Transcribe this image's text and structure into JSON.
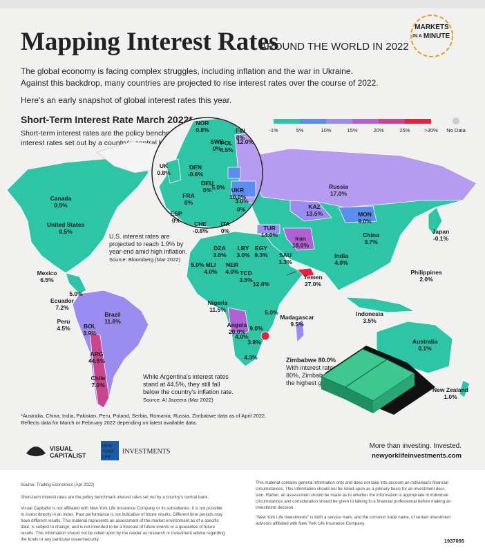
{
  "header": {
    "title": "Mapping Interest Rates",
    "subtitle": "AROUND THE WORLD IN 2022",
    "badge": [
      "MARKETS",
      "IN A",
      "MINUTE"
    ]
  },
  "intro": [
    "The global economy is facing complex struggles, including inflation and the war in Ukraine.",
    "Against this backdrop, many countries are projected to rise interest rates over the course of 2022.",
    "Here's an early snapshot of global interest rates this year."
  ],
  "map": {
    "title": "Short-Term Interest Rate March 2022*",
    "description": [
      "Short-term interest rates are the policy benchmark",
      "interest rates set out by a country's central bank."
    ],
    "legend": {
      "labels": [
        "-1%",
        "5%",
        "10%",
        "15%",
        "20%",
        "25%",
        ">30%"
      ],
      "no_data": "No Data"
    },
    "labels": [
      {
        "name": "Canada",
        "rate": "0.5%"
      },
      {
        "name": "United States",
        "rate": "0.5%"
      },
      {
        "name": "Mexico",
        "rate": "6.5%"
      },
      {
        "name": "Ecuador",
        "rate": "7.2%"
      },
      {
        "name": "Peru",
        "rate": "4.5%"
      },
      {
        "name": "Brazil",
        "rate": "11.8%"
      },
      {
        "name": "BOL",
        "rate": "3.9%"
      },
      {
        "name": "ARG",
        "rate": "44.5%"
      },
      {
        "name": "Chile",
        "rate": "7.0%"
      },
      {
        "rate": "5.0%"
      },
      {
        "name": "Russia",
        "rate": "17.0%"
      },
      {
        "name": "KAZ",
        "rate": "13.5%"
      },
      {
        "name": "MON",
        "rate": "9.0%"
      },
      {
        "name": "China",
        "rate": "3.7%"
      },
      {
        "name": "Japan",
        "rate": "-0.1%"
      },
      {
        "name": "India",
        "rate": "4.0%"
      },
      {
        "name": "Iran",
        "rate": "18.0%"
      },
      {
        "name": "TUR",
        "rate": "14.0%"
      },
      {
        "name": "SAU",
        "rate": "1.3%"
      },
      {
        "name": "Yemen",
        "rate": "27.0%"
      },
      {
        "name": "Philippines",
        "rate": "2.0%"
      },
      {
        "name": "Indonesia",
        "rate": "3.5%"
      },
      {
        "name": "Australia",
        "rate": "0.1%"
      },
      {
        "name": "New Zealand",
        "rate": "1.0%"
      },
      {
        "name": "DZA",
        "rate": "3.0%"
      },
      {
        "name": "LBY",
        "rate": "3.0%"
      },
      {
        "name": "EGY",
        "rate": "9.3%"
      },
      {
        "rate": "5.0%"
      },
      {
        "name": "MLI",
        "rate": "4.0%"
      },
      {
        "name": "NER",
        "rate": "4.0%"
      },
      {
        "name": "TCD",
        "rate": "3.5%"
      },
      {
        "rate": "12.0%"
      },
      {
        "name": "Nigeria",
        "rate": "11.5%"
      },
      {
        "name": "Angola",
        "rate": "20.0%"
      },
      {
        "name": "Madagascar",
        "rate": "9.5%"
      },
      {
        "rate": "5.0%"
      },
      {
        "rate": "9.0%"
      },
      {
        "rate": "4.0%"
      },
      {
        "rate": "3.8%"
      },
      {
        "rate": "4.3%"
      },
      {
        "name": "NOR",
        "rate": "0.8%"
      },
      {
        "name": "FIN",
        "rate": "0%"
      },
      {
        "name": "SWE",
        "rate": "0%"
      },
      {
        "name": "UK",
        "rate": "0.8%"
      },
      {
        "name": "DEN",
        "rate": "-0.6%"
      },
      {
        "name": "POL",
        "rate": "4.5%"
      },
      {
        "rate": "12.0%"
      },
      {
        "name": "DEU",
        "rate": "0%"
      },
      {
        "rate": "5.0%"
      },
      {
        "name": "UKR",
        "rate": "10.0%"
      },
      {
        "name": "FRA",
        "rate": "0%"
      },
      {
        "rate": "3.0%"
      },
      {
        "name": "ESP",
        "rate": "0%"
      },
      {
        "rate": "0%"
      },
      {
        "name": "CHE",
        "rate": "-0.8%"
      },
      {
        "name": "ITA",
        "rate": "0%"
      }
    ],
    "annotations": [
      {
        "lines": [
          "U.S. interest rates are",
          "projected to reach 1.9% by",
          "year-end amid high inflation."
        ],
        "source": "Source: Bloomberg (Mar 2022)"
      },
      {
        "lines": [
          "While Argentina's interest rates",
          "stand at 44.5%, they still fall",
          "below the country's inflation rate."
        ],
        "source": "Source: Al Jazeera (Mar 2022)"
      },
      {
        "heading": "Zimbabwe 80.0%",
        "lines": [
          "With interest rates at",
          "80%, Zimbabwe's are",
          "the highest globally."
        ]
      }
    ]
  },
  "footnote": [
    "*Australia, China, India, Pakistan, Peru, Poland, Serbia, Romania, Russia, Zimbabwe data as of April 2022.",
    "Reflects data for March or February 2022 depending on latest available data."
  ],
  "branding": {
    "vc": [
      "VISUAL",
      "CAPITALIST"
    ],
    "nyl": [
      "NEW",
      "YORK",
      "LIFE"
    ],
    "investments": "INVESTMENTS",
    "tagline": "More than investing. Invested.",
    "url": "newyorklifeinvestments.com"
  },
  "footer": {
    "left": [
      "Source: Trading Economics (Apr 2022)",
      "Short-term interest rates are the policy benchmark interest rates set out by a country's central bank.",
      "Visual Capitalist is not affiliated with New York Life Insurance Company or its subsidiaries. It is not possible",
      "to invest directly in an index. Past performance is not indicative of future results. Different time periods may",
      "have different results. This material represents an assessment of the market environment as of a specific",
      "date; is subject to change; and is not intended to be a forecast of future events or a guarantee of future",
      "results. This information should not be relied upon by the reader as research or investment advice regarding",
      "the funds or any particular issuer/security."
    ],
    "right": [
      "This material contains general information only and does not take into account an individual's financial",
      "circumstances. This information should not be relied upon as a primary basis for an investment deci-",
      "sion. Rather, an assessment should be made as to whether the information is appropriate in individual",
      "circumstances and consideration should be given to talking to a financial professional before making an",
      "investment decision.",
      "\"New York Life Investments\" is both a service mark, and the common trade name, of certain investment",
      "advisors affiliated with New York Life Insurance Company."
    ],
    "code": "1937095"
  }
}
